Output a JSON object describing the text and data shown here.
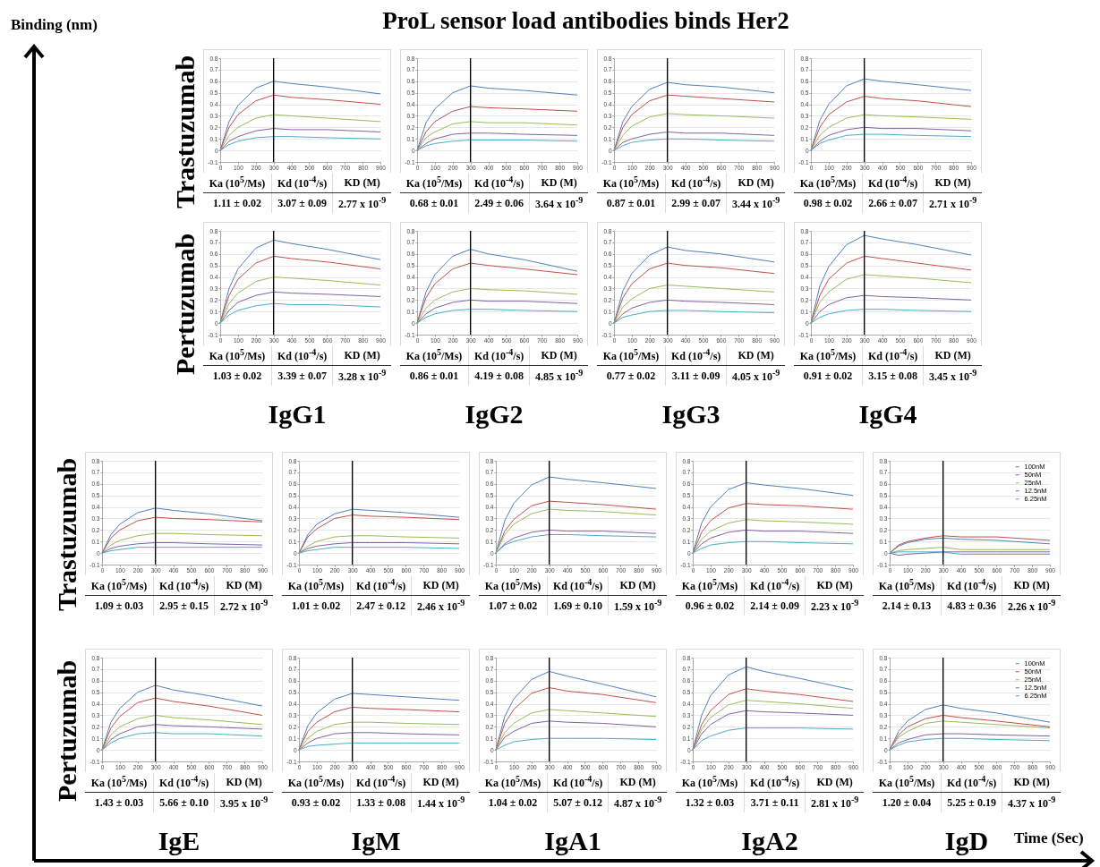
{
  "chart_data": [
    {
      "type": "line",
      "title": "ProL sensor load antibodies binds Her2",
      "ylabel": "Trastuzumab",
      "x": [
        0,
        50,
        100,
        200,
        300,
        400,
        600,
        900
      ],
      "xlim": [
        0,
        900
      ],
      "ylim": [
        -0.1,
        0.8
      ],
      "xticks": [
        0,
        100,
        200,
        300,
        400,
        500,
        600,
        700,
        800,
        900
      ],
      "yticks": [
        -0.1,
        0,
        0.1,
        0.2,
        0.3,
        0.4,
        0.5,
        0.6,
        0.7,
        0.8
      ],
      "grid": "y",
      "ref_lines": [
        {
          "axis": "x",
          "value": 300,
          "color": "#000000"
        }
      ],
      "series": [
        {
          "color": "#4f81bd",
          "values": [
            0,
            0.25,
            0.39,
            0.54,
            0.6,
            0.58,
            0.55,
            0.49
          ]
        },
        {
          "color": "#c0504d",
          "values": [
            0,
            0.2,
            0.31,
            0.43,
            0.48,
            0.46,
            0.44,
            0.4
          ]
        },
        {
          "color": "#9bbb59",
          "values": [
            0,
            0.13,
            0.2,
            0.28,
            0.31,
            0.3,
            0.28,
            0.25
          ]
        },
        {
          "color": "#8064a2",
          "values": [
            0,
            0.08,
            0.12,
            0.17,
            0.19,
            0.18,
            0.18,
            0.16
          ]
        },
        {
          "color": "#4bacc6",
          "values": [
            0,
            0.05,
            0.08,
            0.11,
            0.12,
            0.12,
            0.11,
            0.1
          ]
        }
      ],
      "annotations": [
        "Ka (10$^{5}$/Ms)",
        "Kd (10$^{-4}$/s)",
        "KD (M)",
        "1.11 ± 0.02",
        "3.07 ± 0.09",
        "2.77 x 10$^{-9}$",
        "Binding (nm)",
        "Time (Sec)"
      ]
    },
    {
      "type": "line",
      "x": [
        0,
        50,
        100,
        200,
        300,
        400,
        600,
        900
      ],
      "xlim": [
        0,
        900
      ],
      "ylim": [
        -0.1,
        0.8
      ],
      "xticks": [
        0,
        100,
        200,
        300,
        400,
        500,
        600,
        700,
        800,
        900
      ],
      "yticks": [
        -0.1,
        0,
        0.1,
        0.2,
        0.3,
        0.4,
        0.5,
        0.6,
        0.7,
        0.8
      ],
      "grid": "y",
      "ref_lines": [
        {
          "axis": "x",
          "value": 300,
          "color": "#000000"
        }
      ],
      "series": [
        {
          "color": "#4f81bd",
          "values": [
            0,
            0.24,
            0.36,
            0.5,
            0.56,
            0.54,
            0.52,
            0.48
          ]
        },
        {
          "color": "#c0504d",
          "values": [
            0,
            0.16,
            0.25,
            0.34,
            0.38,
            0.37,
            0.36,
            0.34
          ]
        },
        {
          "color": "#9bbb59",
          "values": [
            0,
            0.11,
            0.16,
            0.23,
            0.25,
            0.24,
            0.24,
            0.22
          ]
        },
        {
          "color": "#8064a2",
          "values": [
            0,
            0.06,
            0.1,
            0.14,
            0.15,
            0.15,
            0.14,
            0.13
          ]
        },
        {
          "color": "#4bacc6",
          "values": [
            0,
            0.04,
            0.06,
            0.08,
            0.09,
            0.09,
            0.09,
            0.08
          ]
        }
      ],
      "annotations": [
        "Ka (10$^{5}$/Ms)",
        "Kd (10$^{-4}$/s)",
        "KD (M)",
        "0.68 ± 0.01",
        "2.49 ± 0.06",
        "3.64 x 10$^{-9}$"
      ]
    },
    {
      "type": "line",
      "x": [
        0,
        50,
        100,
        200,
        300,
        400,
        600,
        900
      ],
      "xlim": [
        0,
        900
      ],
      "ylim": [
        -0.1,
        0.8
      ],
      "xticks": [
        0,
        100,
        200,
        300,
        400,
        500,
        600,
        700,
        800,
        900
      ],
      "yticks": [
        -0.1,
        0,
        0.1,
        0.2,
        0.3,
        0.4,
        0.5,
        0.6,
        0.7,
        0.8
      ],
      "grid": "y",
      "ref_lines": [
        {
          "axis": "x",
          "value": 300,
          "color": "#000000"
        }
      ],
      "series": [
        {
          "color": "#4f81bd",
          "values": [
            0,
            0.25,
            0.38,
            0.53,
            0.59,
            0.57,
            0.55,
            0.5
          ]
        },
        {
          "color": "#c0504d",
          "values": [
            0,
            0.2,
            0.31,
            0.43,
            0.48,
            0.47,
            0.45,
            0.42
          ]
        },
        {
          "color": "#9bbb59",
          "values": [
            0,
            0.13,
            0.21,
            0.29,
            0.32,
            0.31,
            0.3,
            0.28
          ]
        },
        {
          "color": "#8064a2",
          "values": [
            0,
            0.07,
            0.1,
            0.14,
            0.16,
            0.15,
            0.15,
            0.13
          ]
        },
        {
          "color": "#4bacc6",
          "values": [
            0,
            0.04,
            0.07,
            0.09,
            0.1,
            0.1,
            0.09,
            0.08
          ]
        }
      ],
      "annotations": [
        "Ka (10$^{5}$/Ms)",
        "Kd (10$^{-4}$/s)",
        "KD (M)",
        "0.87 ± 0.01",
        "2.99 ± 0.07",
        "3.44 x 10$^{-9}$"
      ]
    },
    {
      "type": "line",
      "x": [
        0,
        50,
        100,
        200,
        300,
        400,
        600,
        900
      ],
      "xlim": [
        0,
        900
      ],
      "ylim": [
        -0.1,
        0.8
      ],
      "xticks": [
        0,
        100,
        200,
        300,
        400,
        500,
        600,
        700,
        800,
        900
      ],
      "yticks": [
        -0.1,
        0,
        0.1,
        0.2,
        0.3,
        0.4,
        0.5,
        0.6,
        0.7,
        0.8
      ],
      "grid": "y",
      "ref_lines": [
        {
          "axis": "x",
          "value": 300,
          "color": "#000000"
        }
      ],
      "series": [
        {
          "color": "#4f81bd",
          "values": [
            0,
            0.26,
            0.4,
            0.56,
            0.62,
            0.6,
            0.57,
            0.52
          ]
        },
        {
          "color": "#c0504d",
          "values": [
            0,
            0.2,
            0.31,
            0.42,
            0.47,
            0.45,
            0.43,
            0.38
          ]
        },
        {
          "color": "#9bbb59",
          "values": [
            0,
            0.13,
            0.2,
            0.28,
            0.31,
            0.3,
            0.29,
            0.27
          ]
        },
        {
          "color": "#8064a2",
          "values": [
            0,
            0.08,
            0.13,
            0.18,
            0.2,
            0.19,
            0.19,
            0.17
          ]
        },
        {
          "color": "#4bacc6",
          "values": [
            0,
            0.06,
            0.09,
            0.13,
            0.14,
            0.14,
            0.13,
            0.12
          ]
        }
      ],
      "annotations": [
        "Ka (10$^{5}$/Ms)",
        "Kd (10$^{-4}$/s)",
        "KD (M)",
        "0.98 ± 0.02",
        "2.66 ± 0.07",
        "2.71 x 10$^{-9}$"
      ]
    },
    {
      "type": "line",
      "ylabel": "Pertuzumab",
      "xlabel": "IgG1",
      "x": [
        0,
        50,
        100,
        200,
        300,
        400,
        600,
        900
      ],
      "xlim": [
        0,
        900
      ],
      "ylim": [
        -0.1,
        0.8
      ],
      "xticks": [
        0,
        100,
        200,
        300,
        400,
        500,
        600,
        700,
        800,
        900
      ],
      "yticks": [
        -0.1,
        0,
        0.1,
        0.2,
        0.3,
        0.4,
        0.5,
        0.6,
        0.7,
        0.8
      ],
      "grid": "y",
      "ref_lines": [
        {
          "axis": "x",
          "value": 300,
          "color": "#000000"
        }
      ],
      "series": [
        {
          "color": "#4f81bd",
          "values": [
            0,
            0.3,
            0.47,
            0.65,
            0.72,
            0.69,
            0.64,
            0.55
          ]
        },
        {
          "color": "#c0504d",
          "values": [
            0,
            0.24,
            0.38,
            0.52,
            0.58,
            0.56,
            0.53,
            0.47
          ]
        },
        {
          "color": "#9bbb59",
          "values": [
            0,
            0.17,
            0.26,
            0.36,
            0.4,
            0.39,
            0.37,
            0.33
          ]
        },
        {
          "color": "#8064a2",
          "values": [
            0,
            0.11,
            0.18,
            0.24,
            0.27,
            0.26,
            0.25,
            0.23
          ]
        },
        {
          "color": "#4bacc6",
          "values": [
            0,
            0.07,
            0.11,
            0.15,
            0.17,
            0.16,
            0.16,
            0.14
          ]
        }
      ],
      "annotations": [
        "Ka (10$^{5}$/Ms)",
        "Kd (10$^{-4}$/s)",
        "KD (M)",
        "1.03 ± 0.02",
        "3.39 ± 0.07",
        "3.28 x 10$^{-9}$"
      ]
    },
    {
      "type": "line",
      "xlabel": "IgG2",
      "x": [
        0,
        50,
        100,
        200,
        300,
        400,
        600,
        900
      ],
      "xlim": [
        0,
        900
      ],
      "ylim": [
        -0.1,
        0.8
      ],
      "xticks": [
        0,
        100,
        200,
        300,
        400,
        500,
        600,
        700,
        800,
        900
      ],
      "yticks": [
        -0.1,
        0,
        0.1,
        0.2,
        0.3,
        0.4,
        0.5,
        0.6,
        0.7,
        0.8
      ],
      "grid": "y",
      "ref_lines": [
        {
          "axis": "x",
          "value": 300,
          "color": "#000000"
        }
      ],
      "series": [
        {
          "color": "#4f81bd",
          "values": [
            0,
            0.27,
            0.42,
            0.58,
            0.64,
            0.6,
            0.55,
            0.45
          ]
        },
        {
          "color": "#c0504d",
          "values": [
            0,
            0.22,
            0.34,
            0.47,
            0.52,
            0.5,
            0.47,
            0.42
          ]
        },
        {
          "color": "#9bbb59",
          "values": [
            0,
            0.13,
            0.2,
            0.27,
            0.3,
            0.29,
            0.28,
            0.25
          ]
        },
        {
          "color": "#8064a2",
          "values": [
            0,
            0.08,
            0.13,
            0.18,
            0.2,
            0.19,
            0.19,
            0.17
          ]
        },
        {
          "color": "#4bacc6",
          "values": [
            0,
            0.05,
            0.08,
            0.11,
            0.12,
            0.12,
            0.11,
            0.1
          ]
        }
      ],
      "annotations": [
        "Ka (10$^{5}$/Ms)",
        "Kd (10$^{-4}$/s)",
        "KD (M)",
        "0.86 ± 0.01",
        "4.19 ± 0.08",
        "4.85 x 10$^{-9}$"
      ]
    },
    {
      "type": "line",
      "xlabel": "IgG3",
      "x": [
        0,
        50,
        100,
        200,
        300,
        400,
        600,
        900
      ],
      "xlim": [
        0,
        900
      ],
      "ylim": [
        -0.1,
        0.8
      ],
      "xticks": [
        0,
        100,
        200,
        300,
        400,
        500,
        600,
        700,
        800,
        900
      ],
      "yticks": [
        -0.1,
        0,
        0.1,
        0.2,
        0.3,
        0.4,
        0.5,
        0.6,
        0.7,
        0.8
      ],
      "grid": "y",
      "ref_lines": [
        {
          "axis": "x",
          "value": 300,
          "color": "#000000"
        }
      ],
      "series": [
        {
          "color": "#4f81bd",
          "values": [
            0,
            0.28,
            0.43,
            0.59,
            0.66,
            0.63,
            0.6,
            0.53
          ]
        },
        {
          "color": "#c0504d",
          "values": [
            0,
            0.22,
            0.34,
            0.47,
            0.52,
            0.5,
            0.48,
            0.43
          ]
        },
        {
          "color": "#9bbb59",
          "values": [
            0,
            0.14,
            0.21,
            0.3,
            0.33,
            0.32,
            0.3,
            0.27
          ]
        },
        {
          "color": "#8064a2",
          "values": [
            0,
            0.08,
            0.13,
            0.18,
            0.2,
            0.19,
            0.18,
            0.16
          ]
        },
        {
          "color": "#4bacc6",
          "values": [
            0,
            0.05,
            0.07,
            0.1,
            0.11,
            0.11,
            0.1,
            0.09
          ]
        }
      ],
      "annotations": [
        "Ka (10$^{5}$/Ms)",
        "Kd (10$^{-4}$/s)",
        "KD (M)",
        "0.77 ± 0.02",
        "3.11 ± 0.09",
        "4.05 x 10$^{-9}$"
      ]
    },
    {
      "type": "line",
      "xlabel": "IgG4",
      "x": [
        0,
        50,
        100,
        200,
        300,
        400,
        600,
        900
      ],
      "xlim": [
        0,
        900
      ],
      "ylim": [
        -0.1,
        0.8
      ],
      "xticks": [
        0,
        100,
        200,
        300,
        400,
        500,
        600,
        700,
        800,
        900
      ],
      "yticks": [
        -0.1,
        0,
        0.1,
        0.2,
        0.3,
        0.4,
        0.5,
        0.6,
        0.7,
        0.8
      ],
      "grid": "y",
      "ref_lines": [
        {
          "axis": "x",
          "value": 300,
          "color": "#000000"
        }
      ],
      "series": [
        {
          "color": "#4f81bd",
          "values": [
            0,
            0.32,
            0.49,
            0.68,
            0.76,
            0.73,
            0.68,
            0.59
          ]
        },
        {
          "color": "#c0504d",
          "values": [
            0,
            0.24,
            0.38,
            0.52,
            0.58,
            0.56,
            0.52,
            0.46
          ]
        },
        {
          "color": "#9bbb59",
          "values": [
            0,
            0.18,
            0.27,
            0.38,
            0.42,
            0.41,
            0.39,
            0.35
          ]
        },
        {
          "color": "#8064a2",
          "values": [
            0,
            0.1,
            0.16,
            0.22,
            0.24,
            0.23,
            0.22,
            0.2
          ]
        },
        {
          "color": "#4bacc6",
          "values": [
            0,
            0.05,
            0.08,
            0.11,
            0.12,
            0.12,
            0.11,
            0.1
          ]
        }
      ],
      "annotations": [
        "Ka (10$^{5}$/Ms)",
        "Kd (10$^{-4}$/s)",
        "KD (M)",
        "0.91 ± 0.02",
        "3.15 ± 0.08",
        "3.45 x 10$^{-9}$"
      ]
    },
    {
      "type": "line",
      "ylabel": "Trastuzumab",
      "x": [
        0,
        50,
        100,
        200,
        300,
        400,
        600,
        900
      ],
      "xlim": [
        0,
        900
      ],
      "ylim": [
        -0.1,
        0.8
      ],
      "xticks": [
        0,
        100,
        200,
        300,
        400,
        500,
        600,
        700,
        800,
        900
      ],
      "yticks": [
        -0.1,
        0,
        0.1,
        0.2,
        0.3,
        0.4,
        0.5,
        0.6,
        0.7,
        0.8
      ],
      "grid": "y",
      "ref_lines": [
        {
          "axis": "x",
          "value": 300,
          "color": "#000000"
        }
      ],
      "series": [
        {
          "color": "#4f81bd",
          "values": [
            0,
            0.16,
            0.25,
            0.35,
            0.39,
            0.37,
            0.34,
            0.28
          ]
        },
        {
          "color": "#c0504d",
          "values": [
            0,
            0.13,
            0.2,
            0.28,
            0.31,
            0.3,
            0.29,
            0.27
          ]
        },
        {
          "color": "#9bbb59",
          "values": [
            0,
            0.07,
            0.11,
            0.15,
            0.17,
            0.17,
            0.16,
            0.15
          ]
        },
        {
          "color": "#8064a2",
          "values": [
            0,
            0.04,
            0.06,
            0.08,
            0.09,
            0.09,
            0.08,
            0.07
          ]
        },
        {
          "color": "#4bacc6",
          "values": [
            0,
            0.02,
            0.03,
            0.05,
            0.05,
            0.05,
            0.05,
            0.05
          ]
        }
      ],
      "annotations": [
        "Ka (10$^{5}$/Ms)",
        "Kd (10$^{-4}$/s)",
        "KD (M)",
        "1.09 ± 0.03",
        "2.95 ± 0.15",
        "2.72 x 10$^{-9}$"
      ]
    },
    {
      "type": "line",
      "x": [
        0,
        50,
        100,
        200,
        300,
        400,
        600,
        900
      ],
      "xlim": [
        0,
        900
      ],
      "ylim": [
        -0.1,
        0.8
      ],
      "xticks": [
        0,
        100,
        200,
        300,
        400,
        500,
        600,
        700,
        800,
        900
      ],
      "yticks": [
        -0.1,
        0,
        0.1,
        0.2,
        0.3,
        0.4,
        0.5,
        0.6,
        0.7,
        0.8
      ],
      "grid": "y",
      "ref_lines": [
        {
          "axis": "x",
          "value": 300,
          "color": "#000000"
        }
      ],
      "series": [
        {
          "color": "#4f81bd",
          "values": [
            0,
            0.16,
            0.25,
            0.34,
            0.38,
            0.37,
            0.35,
            0.31
          ]
        },
        {
          "color": "#c0504d",
          "values": [
            0,
            0.14,
            0.21,
            0.3,
            0.33,
            0.32,
            0.31,
            0.29
          ]
        },
        {
          "color": "#9bbb59",
          "values": [
            0,
            0.06,
            0.1,
            0.14,
            0.15,
            0.15,
            0.14,
            0.13
          ]
        },
        {
          "color": "#8064a2",
          "values": [
            0,
            0.04,
            0.06,
            0.08,
            0.09,
            0.09,
            0.09,
            0.08
          ]
        },
        {
          "color": "#4bacc6",
          "values": [
            0,
            0.02,
            0.03,
            0.05,
            0.05,
            0.05,
            0.05,
            0.04
          ]
        }
      ],
      "annotations": [
        "Ka (10$^{5}$/Ms)",
        "Kd (10$^{-4}$/s)",
        "KD (M)",
        "1.01 ± 0.02",
        "2.47 ± 0.12",
        "2.46 x 10$^{-9}$"
      ]
    },
    {
      "type": "line",
      "x": [
        0,
        50,
        100,
        200,
        300,
        400,
        600,
        900
      ],
      "xlim": [
        0,
        900
      ],
      "ylim": [
        -0.1,
        0.8
      ],
      "xticks": [
        0,
        100,
        200,
        300,
        400,
        500,
        600,
        700,
        800,
        900
      ],
      "yticks": [
        -0.1,
        0,
        0.1,
        0.2,
        0.3,
        0.4,
        0.5,
        0.6,
        0.7,
        0.8
      ],
      "grid": "y",
      "ref_lines": [
        {
          "axis": "x",
          "value": 300,
          "color": "#000000"
        }
      ],
      "series": [
        {
          "color": "#4f81bd",
          "values": [
            0,
            0.28,
            0.43,
            0.59,
            0.66,
            0.64,
            0.61,
            0.56
          ]
        },
        {
          "color": "#c0504d",
          "values": [
            0,
            0.19,
            0.29,
            0.41,
            0.45,
            0.44,
            0.42,
            0.38
          ]
        },
        {
          "color": "#9bbb59",
          "values": [
            0,
            0.16,
            0.25,
            0.34,
            0.38,
            0.37,
            0.36,
            0.33
          ]
        },
        {
          "color": "#8064a2",
          "values": [
            0,
            0.08,
            0.13,
            0.18,
            0.2,
            0.19,
            0.19,
            0.17
          ]
        },
        {
          "color": "#4bacc6",
          "values": [
            0,
            0.07,
            0.1,
            0.14,
            0.16,
            0.16,
            0.15,
            0.14
          ]
        }
      ],
      "annotations": [
        "Ka (10$^{5}$/Ms)",
        "Kd (10$^{-4}$/s)",
        "KD (M)",
        "1.07 ± 0.02",
        "1.69 ± 0.10",
        "1.59 x 10$^{-9}$"
      ]
    },
    {
      "type": "line",
      "x": [
        0,
        50,
        100,
        200,
        300,
        400,
        600,
        900
      ],
      "xlim": [
        0,
        900
      ],
      "ylim": [
        -0.1,
        0.8
      ],
      "xticks": [
        0,
        100,
        200,
        300,
        400,
        500,
        600,
        700,
        800,
        900
      ],
      "yticks": [
        -0.1,
        0,
        0.1,
        0.2,
        0.3,
        0.4,
        0.5,
        0.6,
        0.7,
        0.8
      ],
      "grid": "y",
      "ref_lines": [
        {
          "axis": "x",
          "value": 300,
          "color": "#000000"
        }
      ],
      "series": [
        {
          "color": "#4f81bd",
          "values": [
            0,
            0.26,
            0.4,
            0.55,
            0.61,
            0.59,
            0.56,
            0.5
          ]
        },
        {
          "color": "#c0504d",
          "values": [
            0,
            0.18,
            0.28,
            0.39,
            0.43,
            0.42,
            0.41,
            0.38
          ]
        },
        {
          "color": "#9bbb59",
          "values": [
            0,
            0.12,
            0.19,
            0.26,
            0.29,
            0.28,
            0.27,
            0.25
          ]
        },
        {
          "color": "#8064a2",
          "values": [
            0,
            0.08,
            0.13,
            0.18,
            0.2,
            0.19,
            0.19,
            0.17
          ]
        },
        {
          "color": "#4bacc6",
          "values": [
            0,
            0.04,
            0.07,
            0.09,
            0.1,
            0.1,
            0.09,
            0.08
          ]
        }
      ],
      "annotations": [
        "Ka (10$^{5}$/Ms)",
        "Kd (10$^{-4}$/s)",
        "KD (M)",
        "0.96 ± 0.02",
        "2.14 ± 0.09",
        "2.23 x 10$^{-9}$"
      ]
    },
    {
      "type": "line",
      "legend": "top right",
      "x": [
        0,
        50,
        100,
        200,
        300,
        400,
        600,
        900
      ],
      "xlim": [
        0,
        900
      ],
      "ylim": [
        -0.1,
        0.8
      ],
      "xticks": [
        0,
        100,
        200,
        300,
        400,
        500,
        600,
        700,
        800,
        900
      ],
      "yticks": [
        -0.1,
        0,
        0.1,
        0.2,
        0.3,
        0.4,
        0.5,
        0.6,
        0.7,
        0.8
      ],
      "grid": "y",
      "ref_lines": [
        {
          "axis": "x",
          "value": 300,
          "color": "#000000"
        }
      ],
      "series": [
        {
          "name": "100nM",
          "color": "#4f81bd",
          "values": [
            0,
            0.06,
            0.09,
            0.12,
            0.13,
            0.12,
            0.11,
            0.08
          ]
        },
        {
          "name": "50nM",
          "color": "#c0504d",
          "values": [
            0,
            0.07,
            0.1,
            0.13,
            0.15,
            0.14,
            0.14,
            0.11
          ]
        },
        {
          "name": "25nM",
          "color": "#9bbb59",
          "values": [
            0,
            0.02,
            0.03,
            0.04,
            0.05,
            0.03,
            0.03,
            0.03
          ]
        },
        {
          "name": "12.5nM",
          "color": "#8064a2",
          "values": [
            0,
            -0.02,
            -0.01,
            0,
            0.01,
            0.01,
            0.01,
            0.01
          ]
        },
        {
          "name": "6.25nM",
          "color": "#4bacc6",
          "values": [
            0,
            0.01,
            0.01,
            0.01,
            0.01,
            -0.01,
            -0.01,
            -0.01
          ]
        }
      ],
      "annotations": [
        "Ka (10$^{5}$/Ms)",
        "Kd (10$^{-4}$/s)",
        "KD (M)",
        "2.14 ± 0.13",
        "4.83 ± 0.36",
        "2.26 x 10$^{-9}$"
      ]
    },
    {
      "type": "line",
      "ylabel": "Pertuzumab",
      "xlabel": "IgE",
      "x": [
        0,
        50,
        100,
        200,
        300,
        400,
        600,
        900
      ],
      "xlim": [
        0,
        900
      ],
      "ylim": [
        -0.1,
        0.8
      ],
      "xticks": [
        0,
        100,
        200,
        300,
        400,
        500,
        600,
        700,
        800,
        900
      ],
      "yticks": [
        -0.1,
        0,
        0.1,
        0.2,
        0.3,
        0.4,
        0.5,
        0.6,
        0.7,
        0.8
      ],
      "grid": "y",
      "ref_lines": [
        {
          "axis": "x",
          "value": 300,
          "color": "#000000"
        }
      ],
      "series": [
        {
          "color": "#4f81bd",
          "values": [
            0,
            0.24,
            0.36,
            0.5,
            0.56,
            0.52,
            0.47,
            0.38
          ]
        },
        {
          "color": "#c0504d",
          "values": [
            0,
            0.19,
            0.29,
            0.41,
            0.45,
            0.42,
            0.38,
            0.3
          ]
        },
        {
          "color": "#9bbb59",
          "values": [
            0,
            0.13,
            0.2,
            0.27,
            0.3,
            0.28,
            0.26,
            0.22
          ]
        },
        {
          "color": "#8064a2",
          "values": [
            0,
            0.09,
            0.14,
            0.2,
            0.22,
            0.21,
            0.2,
            0.18
          ]
        },
        {
          "color": "#4bacc6",
          "values": [
            0,
            0.06,
            0.1,
            0.14,
            0.15,
            0.14,
            0.14,
            0.12
          ]
        }
      ],
      "annotations": [
        "Ka (10$^{5}$/Ms)",
        "Kd (10$^{-4}$/s)",
        "KD (M)",
        "1.43 ± 0.03",
        "5.66 ± 0.10",
        "3.95 x 10$^{-9}$"
      ]
    },
    {
      "type": "line",
      "xlabel": "IgM",
      "x": [
        0,
        50,
        100,
        200,
        300,
        400,
        600,
        900
      ],
      "xlim": [
        0,
        900
      ],
      "ylim": [
        -0.1,
        0.8
      ],
      "xticks": [
        0,
        100,
        200,
        300,
        400,
        500,
        600,
        700,
        800,
        900
      ],
      "yticks": [
        -0.1,
        0,
        0.1,
        0.2,
        0.3,
        0.4,
        0.5,
        0.6,
        0.7,
        0.8
      ],
      "grid": "y",
      "ref_lines": [
        {
          "axis": "x",
          "value": 300,
          "color": "#000000"
        }
      ],
      "series": [
        {
          "color": "#4f81bd",
          "values": [
            0,
            0.21,
            0.32,
            0.44,
            0.49,
            0.48,
            0.46,
            0.43
          ]
        },
        {
          "color": "#c0504d",
          "values": [
            0,
            0.16,
            0.24,
            0.33,
            0.37,
            0.36,
            0.35,
            0.33
          ]
        },
        {
          "color": "#9bbb59",
          "values": [
            0,
            0.1,
            0.16,
            0.22,
            0.24,
            0.24,
            0.23,
            0.22
          ]
        },
        {
          "color": "#8064a2",
          "values": [
            0,
            0.06,
            0.1,
            0.14,
            0.15,
            0.15,
            0.14,
            0.13
          ]
        },
        {
          "color": "#4bacc6",
          "values": [
            0,
            0.03,
            0.04,
            0.05,
            0.06,
            0.06,
            0.06,
            0.06
          ]
        }
      ],
      "annotations": [
        "Ka (10$^{5}$/Ms)",
        "Kd (10$^{-4}$/s)",
        "KD (M)",
        "0.93 ± 0.02",
        "1.33 ± 0.08",
        "1.44 x 10$^{-9}$"
      ]
    },
    {
      "type": "line",
      "xlabel": "IgA1",
      "x": [
        0,
        50,
        100,
        200,
        300,
        400,
        600,
        900
      ],
      "xlim": [
        0,
        900
      ],
      "ylim": [
        -0.1,
        0.8
      ],
      "xticks": [
        0,
        100,
        200,
        300,
        400,
        500,
        600,
        700,
        800,
        900
      ],
      "yticks": [
        -0.1,
        0,
        0.1,
        0.2,
        0.3,
        0.4,
        0.5,
        0.6,
        0.7,
        0.8
      ],
      "grid": "y",
      "ref_lines": [
        {
          "axis": "x",
          "value": 300,
          "color": "#000000"
        }
      ],
      "series": [
        {
          "color": "#4f81bd",
          "values": [
            0,
            0.29,
            0.44,
            0.61,
            0.68,
            0.64,
            0.57,
            0.46
          ]
        },
        {
          "color": "#c0504d",
          "values": [
            0,
            0.23,
            0.35,
            0.49,
            0.54,
            0.51,
            0.48,
            0.41
          ]
        },
        {
          "color": "#9bbb59",
          "values": [
            0,
            0.15,
            0.23,
            0.32,
            0.35,
            0.34,
            0.32,
            0.29
          ]
        },
        {
          "color": "#8064a2",
          "values": [
            0,
            0.11,
            0.16,
            0.23,
            0.25,
            0.24,
            0.23,
            0.2
          ]
        },
        {
          "color": "#4bacc6",
          "values": [
            0,
            0.04,
            0.07,
            0.09,
            0.1,
            0.1,
            0.1,
            0.09
          ]
        }
      ],
      "annotations": [
        "Ka (10$^{5}$/Ms)",
        "Kd (10$^{-4}$/s)",
        "KD (M)",
        "1.04 ± 0.02",
        "5.07 ± 0.12",
        "4.87 x 10$^{-9}$"
      ]
    },
    {
      "type": "line",
      "xlabel": "IgA2",
      "x": [
        0,
        50,
        100,
        200,
        300,
        400,
        600,
        900
      ],
      "xlim": [
        0,
        900
      ],
      "ylim": [
        -0.1,
        0.8
      ],
      "xticks": [
        0,
        100,
        200,
        300,
        400,
        500,
        600,
        700,
        800,
        900
      ],
      "yticks": [
        -0.1,
        0,
        0.1,
        0.2,
        0.3,
        0.4,
        0.5,
        0.6,
        0.7,
        0.8
      ],
      "grid": "y",
      "ref_lines": [
        {
          "axis": "x",
          "value": 300,
          "color": "#000000"
        }
      ],
      "series": [
        {
          "color": "#4f81bd",
          "values": [
            0,
            0.3,
            0.47,
            0.65,
            0.72,
            0.68,
            0.62,
            0.52
          ]
        },
        {
          "color": "#c0504d",
          "values": [
            0,
            0.22,
            0.34,
            0.48,
            0.53,
            0.51,
            0.48,
            0.42
          ]
        },
        {
          "color": "#9bbb59",
          "values": [
            0,
            0.18,
            0.28,
            0.39,
            0.43,
            0.42,
            0.4,
            0.36
          ]
        },
        {
          "color": "#8064a2",
          "values": [
            0,
            0.14,
            0.22,
            0.31,
            0.34,
            0.33,
            0.32,
            0.3
          ]
        },
        {
          "color": "#4bacc6",
          "values": [
            0,
            0.08,
            0.12,
            0.17,
            0.19,
            0.19,
            0.19,
            0.18
          ]
        }
      ],
      "annotations": [
        "Ka (10$^{5}$/Ms)",
        "Kd (10$^{-4}$/s)",
        "KD (M)",
        "1.32 ± 0.03",
        "3.71 ± 0.11",
        "2.81 x 10$^{-9}$"
      ]
    },
    {
      "type": "line",
      "xlabel": "IgD",
      "legend": "top right",
      "x": [
        0,
        50,
        100,
        200,
        300,
        400,
        600,
        900
      ],
      "xlim": [
        0,
        900
      ],
      "ylim": [
        -0.1,
        0.8
      ],
      "xticks": [
        0,
        100,
        200,
        300,
        400,
        500,
        600,
        700,
        800,
        900
      ],
      "yticks": [
        -0.1,
        0,
        0.1,
        0.2,
        0.3,
        0.4,
        0.5,
        0.6,
        0.7,
        0.8
      ],
      "grid": "y",
      "ref_lines": [
        {
          "axis": "x",
          "value": 300,
          "color": "#000000"
        }
      ],
      "series": [
        {
          "name": "100nM",
          "color": "#4f81bd",
          "values": [
            0,
            0.16,
            0.25,
            0.35,
            0.39,
            0.36,
            0.32,
            0.24
          ]
        },
        {
          "name": "50nM",
          "color": "#c0504d",
          "values": [
            0,
            0.13,
            0.2,
            0.27,
            0.3,
            0.28,
            0.25,
            0.2
          ]
        },
        {
          "name": "25nM",
          "color": "#9bbb59",
          "values": [
            0,
            0.11,
            0.16,
            0.23,
            0.25,
            0.24,
            0.22,
            0.19
          ]
        },
        {
          "name": "12.5nM",
          "color": "#8064a2",
          "values": [
            0,
            0.06,
            0.09,
            0.13,
            0.14,
            0.14,
            0.13,
            0.12
          ]
        },
        {
          "name": "6.25nM",
          "color": "#4bacc6",
          "values": [
            0,
            0.04,
            0.07,
            0.09,
            0.1,
            0.1,
            0.09,
            0.08
          ]
        }
      ],
      "annotations": [
        "Ka (10$^{5}$/Ms)",
        "Kd (10$^{-4}$/s)",
        "KD (M)",
        "1.20 ± 0.04",
        "5.25 ± 0.19",
        "4.37 x 10$^{-9}$"
      ]
    }
  ]
}
